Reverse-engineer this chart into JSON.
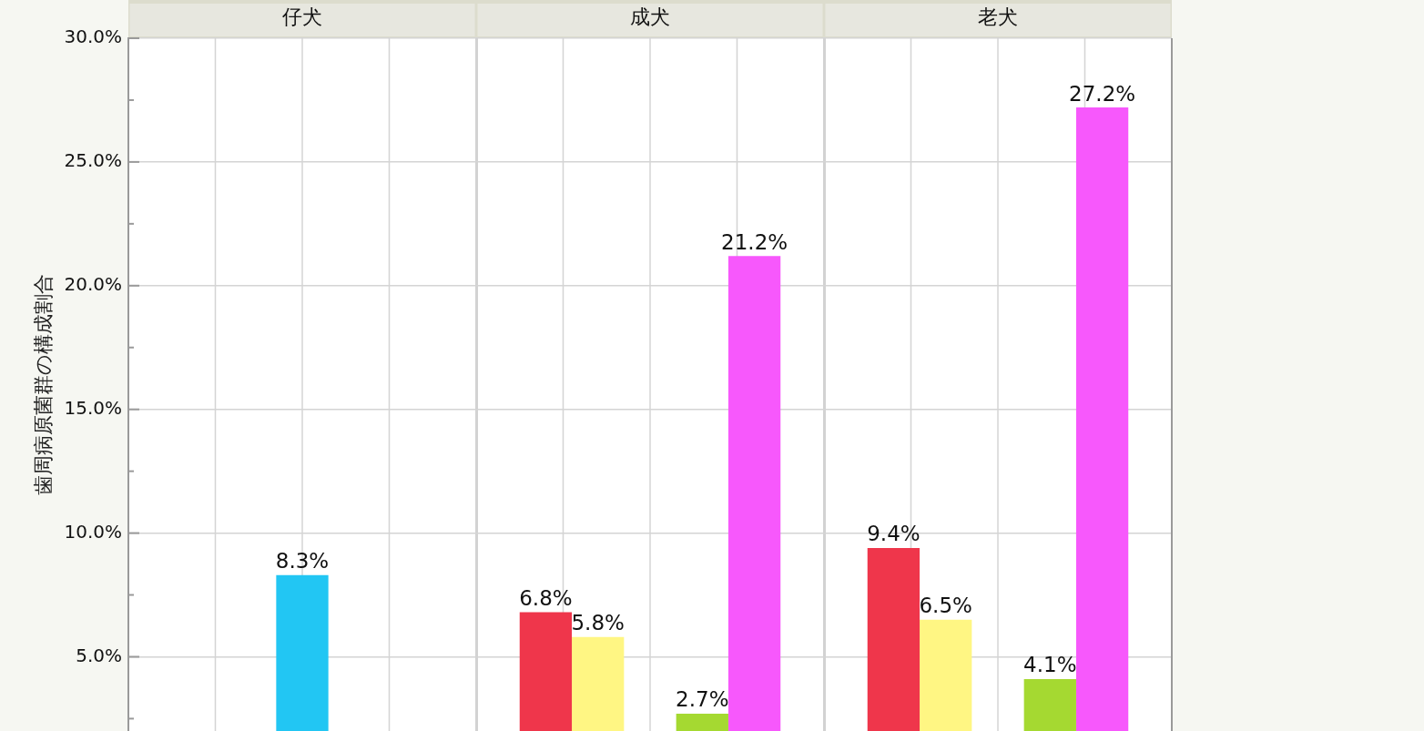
{
  "chart_data": {
    "type": "bar",
    "categories": [
      "仔犬",
      "成犬",
      "老犬"
    ],
    "ylabel": "歯周病原菌群の構成割合",
    "series": [
      {
        "color": "#ef364b",
        "values": [
          null,
          6.8,
          9.4
        ],
        "value_labels": [
          null,
          "6.8%",
          "9.4%"
        ]
      },
      {
        "color": "#fff683",
        "values": [
          null,
          5.8,
          6.5
        ],
        "value_labels": [
          null,
          "5.8%",
          "6.5%"
        ]
      },
      {
        "color": "#22c6f3",
        "values": [
          8.3,
          null,
          null
        ],
        "value_labels": [
          "8.3%",
          null,
          null
        ]
      },
      {
        "color": "#a5d931",
        "values": [
          null,
          2.7,
          4.1
        ],
        "value_labels": [
          null,
          "2.7%",
          "4.1%"
        ]
      },
      {
        "color": "#f758fc",
        "values": [
          null,
          21.2,
          27.2
        ],
        "value_labels": [
          null,
          "21.2%",
          "27.2%"
        ]
      }
    ],
    "ylim": [
      2.0,
      30.0
    ],
    "yticks": [
      {
        "value": 2.5,
        "label": null
      },
      {
        "value": 5,
        "label": "5.0%"
      },
      {
        "value": 7.5,
        "label": null
      },
      {
        "value": 10,
        "label": "10.0%"
      },
      {
        "value": 12.5,
        "label": null
      },
      {
        "value": 15,
        "label": "15.0%"
      },
      {
        "value": 17.5,
        "label": null
      },
      {
        "value": 20,
        "label": "20.0%"
      },
      {
        "value": 22.5,
        "label": null
      },
      {
        "value": 25,
        "label": "25.0%"
      },
      {
        "value": 27.5,
        "label": null
      },
      {
        "value": 30,
        "label": "30.0%"
      }
    ],
    "grid": true
  }
}
